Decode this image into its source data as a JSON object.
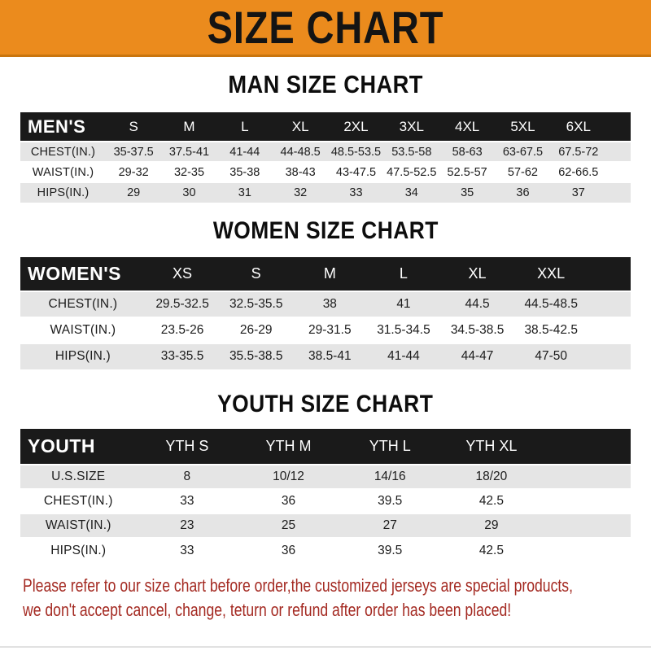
{
  "banner": {
    "title": "SIZE CHART"
  },
  "colors": {
    "banner_orange": "#EB8B1D",
    "banner_edge": "#C9750E",
    "header_bar_black": "#1A1A1A",
    "row_gray": "#E5E5E5",
    "footer_red": "#A42A22"
  },
  "chart_data": [
    {
      "type": "table",
      "title": "MAN SIZE CHART",
      "header_label": "MEN'S",
      "columns": [
        "S",
        "M",
        "L",
        "XL",
        "2XL",
        "3XL",
        "4XL",
        "5XL",
        "6XL"
      ],
      "rows": [
        {
          "label": "CHEST(IN.)",
          "values": [
            "35-37.5",
            "37.5-41",
            "41-44",
            "44-48.5",
            "48.5-53.5",
            "53.5-58",
            "58-63",
            "63-67.5",
            "67.5-72"
          ]
        },
        {
          "label": "WAIST(IN.)",
          "values": [
            "29-32",
            "32-35",
            "35-38",
            "38-43",
            "43-47.5",
            "47.5-52.5",
            "52.5-57",
            "57-62",
            "62-66.5"
          ]
        },
        {
          "label": "HIPS(IN.)",
          "values": [
            "29",
            "30",
            "31",
            "32",
            "33",
            "34",
            "35",
            "36",
            "37"
          ]
        }
      ]
    },
    {
      "type": "table",
      "title": "WOMEN SIZE CHART",
      "header_label": "WOMEN'S",
      "columns": [
        "XS",
        "S",
        "M",
        "L",
        "XL",
        "XXL"
      ],
      "rows": [
        {
          "label": "CHEST(IN.)",
          "values": [
            "29.5-32.5",
            "32.5-35.5",
            "38",
            "41",
            "44.5",
            "44.5-48.5"
          ]
        },
        {
          "label": "WAIST(IN.)",
          "values": [
            "23.5-26",
            "26-29",
            "29-31.5",
            "31.5-34.5",
            "34.5-38.5",
            "38.5-42.5"
          ]
        },
        {
          "label": "HIPS(IN.)",
          "values": [
            "33-35.5",
            "35.5-38.5",
            "38.5-41",
            "41-44",
            "44-47",
            "47-50"
          ]
        }
      ]
    },
    {
      "type": "table",
      "title": "YOUTH SIZE CHART",
      "header_label": "YOUTH",
      "columns": [
        "YTH S",
        "YTH M",
        "YTH L",
        "YTH XL"
      ],
      "rows": [
        {
          "label": "U.S.SIZE",
          "values": [
            "8",
            "10/12",
            "14/16",
            "18/20"
          ]
        },
        {
          "label": "CHEST(IN.)",
          "values": [
            "33",
            "36",
            "39.5",
            "42.5"
          ]
        },
        {
          "label": "WAIST(IN.)",
          "values": [
            "23",
            "25",
            "27",
            "29"
          ]
        },
        {
          "label": "HIPS(IN.)",
          "values": [
            "33",
            "36",
            "39.5",
            "42.5"
          ]
        }
      ]
    }
  ],
  "footer": {
    "line1": "Please refer to our size chart before order,the customized jerseys are special products,",
    "line2": "we don't accept cancel, change, teturn or refund after order has been placed!"
  }
}
